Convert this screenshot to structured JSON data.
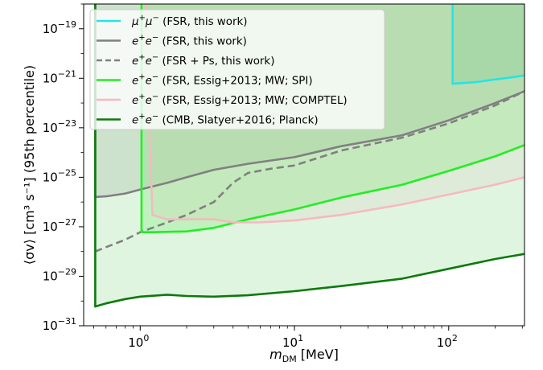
{
  "chart_data": {
    "type": "line",
    "xscale": "log",
    "yscale": "log",
    "xlim": [
      0.43,
      310
    ],
    "ylim": [
      1e-31,
      1e-18
    ],
    "xlabel": "m_DM [MeV]",
    "ylabel": "⟨σv⟩ [cm³ s⁻¹] (95th percentile)",
    "x_ticks": [
      {
        "value": 1,
        "base": "10",
        "exp": "0"
      },
      {
        "value": 10,
        "base": "10",
        "exp": "1"
      },
      {
        "value": 100,
        "base": "10",
        "exp": "2"
      }
    ],
    "y_ticks": [
      {
        "value": 1e-19,
        "base": "10",
        "exp": "−19"
      },
      {
        "value": 1e-21,
        "base": "10",
        "exp": "−21"
      },
      {
        "value": 1e-23,
        "base": "10",
        "exp": "−23"
      },
      {
        "value": 1e-25,
        "base": "10",
        "exp": "−25"
      },
      {
        "value": 1e-27,
        "base": "10",
        "exp": "−27"
      },
      {
        "value": 1e-29,
        "base": "10",
        "exp": "−29"
      },
      {
        "value": 1e-31,
        "base": "10",
        "exp": "−31"
      }
    ],
    "legend_position": "top-left",
    "series": [
      {
        "name": "μ⁺μ⁻ (FSR, this work)",
        "color": "#22e5e5",
        "fill": "#3cc99a",
        "dash": false,
        "points": [
          [
            106,
            1e-18
          ],
          [
            106,
            6e-22
          ],
          [
            150,
            7e-22
          ],
          [
            200,
            9e-22
          ],
          [
            260,
            1.1e-21
          ],
          [
            310,
            1.3e-21
          ]
        ]
      },
      {
        "name": "e⁺e⁻ (FSR, this work)",
        "color": "#808080",
        "fill": "#8c8c8c",
        "dash": false,
        "points": [
          [
            0.511,
            1e-18
          ],
          [
            0.511,
            1.6e-26
          ],
          [
            0.6,
            1.7e-26
          ],
          [
            0.8,
            2.2e-26
          ],
          [
            1,
            3.2e-26
          ],
          [
            1.5,
            6e-26
          ],
          [
            2,
            1e-25
          ],
          [
            3,
            2e-25
          ],
          [
            5,
            3.5e-25
          ],
          [
            10,
            6.5e-25
          ],
          [
            20,
            1.8e-24
          ],
          [
            50,
            5e-24
          ],
          [
            100,
            2e-23
          ],
          [
            200,
            1e-22
          ],
          [
            310,
            3e-22
          ]
        ]
      },
      {
        "name": "e⁺e⁻ (FSR + Ps, this work)",
        "color": "#808080",
        "fill": null,
        "dash": true,
        "points": [
          [
            0.511,
            1e-28
          ],
          [
            0.6,
            1.5e-28
          ],
          [
            0.8,
            3e-28
          ],
          [
            1,
            6e-28
          ],
          [
            1.5,
            1.5e-27
          ],
          [
            2,
            3e-27
          ],
          [
            3,
            1e-26
          ],
          [
            4,
            6e-26
          ],
          [
            5,
            1.5e-25
          ],
          [
            7,
            2.2e-25
          ],
          [
            10,
            3e-25
          ],
          [
            20,
            1.2e-24
          ],
          [
            50,
            4e-24
          ],
          [
            100,
            1.5e-23
          ],
          [
            200,
            8e-23
          ],
          [
            310,
            3e-22
          ]
        ]
      },
      {
        "name": "e⁺e⁻ (FSR, Essig+2013; MW; SPI)",
        "color": "#22ee22",
        "fill": "#33ee33",
        "dash": false,
        "points": [
          [
            1.02,
            1e-18
          ],
          [
            1.02,
            6e-28
          ],
          [
            1.2,
            6e-28
          ],
          [
            2,
            6.5e-28
          ],
          [
            3,
            9e-28
          ],
          [
            5,
            2e-27
          ],
          [
            10,
            5e-27
          ],
          [
            20,
            1.5e-26
          ],
          [
            50,
            5e-26
          ],
          [
            100,
            1.8e-25
          ],
          [
            200,
            7e-25
          ],
          [
            310,
            2e-24
          ]
        ]
      },
      {
        "name": "e⁺e⁻ (FSR, Essig+2013; MW; COMPTEL)",
        "color": "#f8b8c0",
        "fill": "#f4c4cc",
        "dash": false,
        "points": [
          [
            1.1,
            1e-18
          ],
          [
            1.1,
            1e-20
          ],
          [
            1.2,
            3e-27
          ],
          [
            1.5,
            2e-27
          ],
          [
            3,
            2e-27
          ],
          [
            4,
            1.5e-27
          ],
          [
            6,
            1.5e-27
          ],
          [
            10,
            1.8e-27
          ],
          [
            20,
            3e-27
          ],
          [
            50,
            8e-27
          ],
          [
            100,
            2e-26
          ],
          [
            200,
            5e-26
          ],
          [
            310,
            1e-25
          ]
        ]
      },
      {
        "name": "e⁺e⁻ (CMB, Slatyer+2016; Planck)",
        "color": "#0d7a0d",
        "fill": "#66cc66",
        "dash": false,
        "points": [
          [
            0.511,
            1e-18
          ],
          [
            0.511,
            6e-31
          ],
          [
            0.6,
            8e-31
          ],
          [
            0.8,
            1.2e-30
          ],
          [
            1,
            1.5e-30
          ],
          [
            1.5,
            1.8e-30
          ],
          [
            2,
            1.6e-30
          ],
          [
            3,
            1.5e-30
          ],
          [
            5,
            1.7e-30
          ],
          [
            10,
            2.5e-30
          ],
          [
            20,
            4e-30
          ],
          [
            50,
            8e-30
          ],
          [
            100,
            2e-29
          ],
          [
            200,
            5e-29
          ],
          [
            310,
            8e-29
          ]
        ]
      }
    ]
  }
}
